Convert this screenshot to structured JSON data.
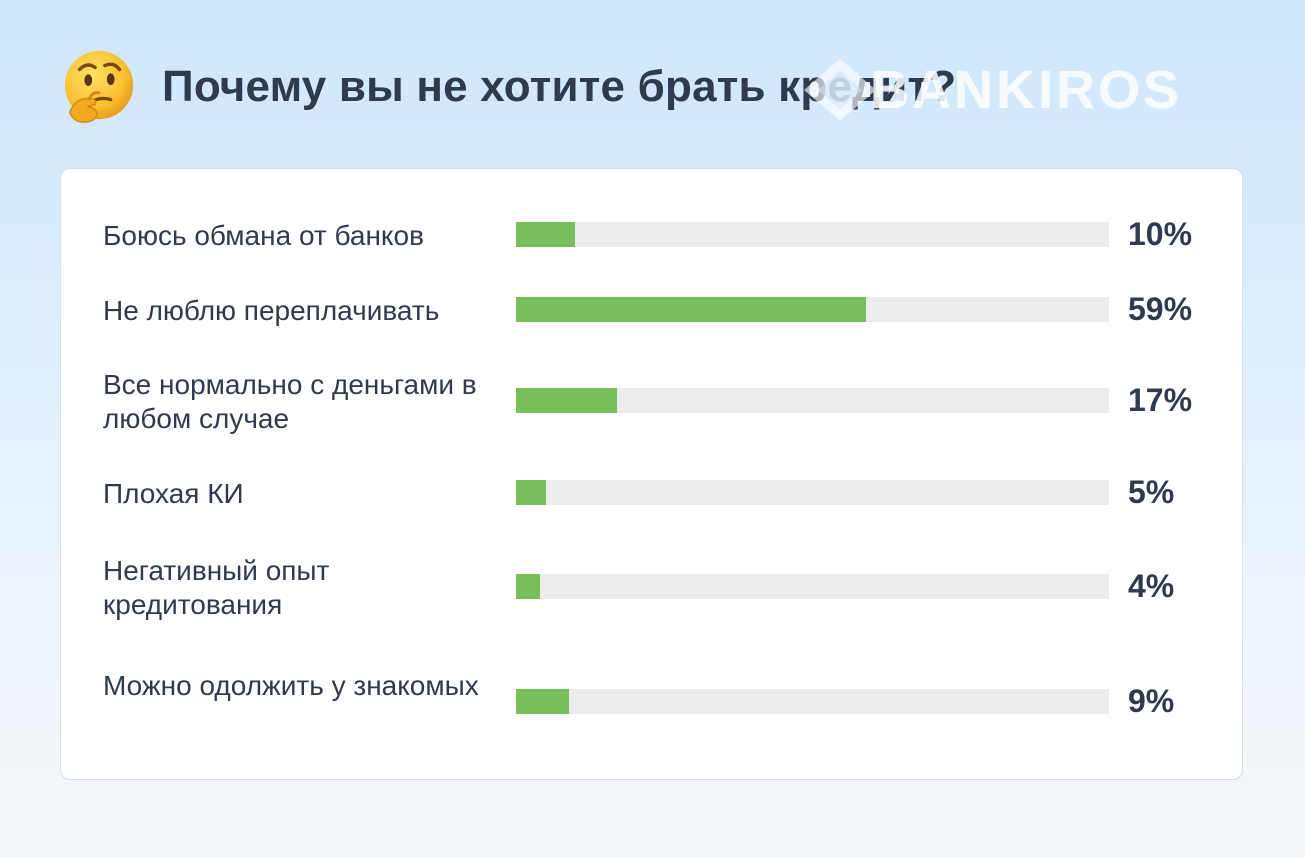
{
  "header": {
    "title": "Почему вы не хотите брать кредит?",
    "emoji_icon": "thinking-face-icon"
  },
  "brand": {
    "name": "BANKIROS",
    "logo_icon": "diamond-logo-icon"
  },
  "colors": {
    "bar_fill": "#78bf59",
    "bar_track": "#ececec",
    "text": "#2f3a4e"
  },
  "chart_data": {
    "type": "bar",
    "orientation": "horizontal",
    "title": "Почему вы не хотите брать кредит?",
    "categories": [
      "Боюсь обмана от банков",
      "Не люблю переплачивать",
      "Все нормально с деньгами в любом случае",
      "Плохая КИ",
      "Негативный опыт кредитования",
      "Можно одолжить у знакомых"
    ],
    "values": [
      10,
      59,
      17,
      5,
      4,
      9
    ],
    "value_labels": [
      "10%",
      "59%",
      "17%",
      "5%",
      "4%",
      "9%"
    ],
    "unit": "%",
    "xlim": [
      0,
      100
    ],
    "grid": false,
    "legend": "none"
  }
}
